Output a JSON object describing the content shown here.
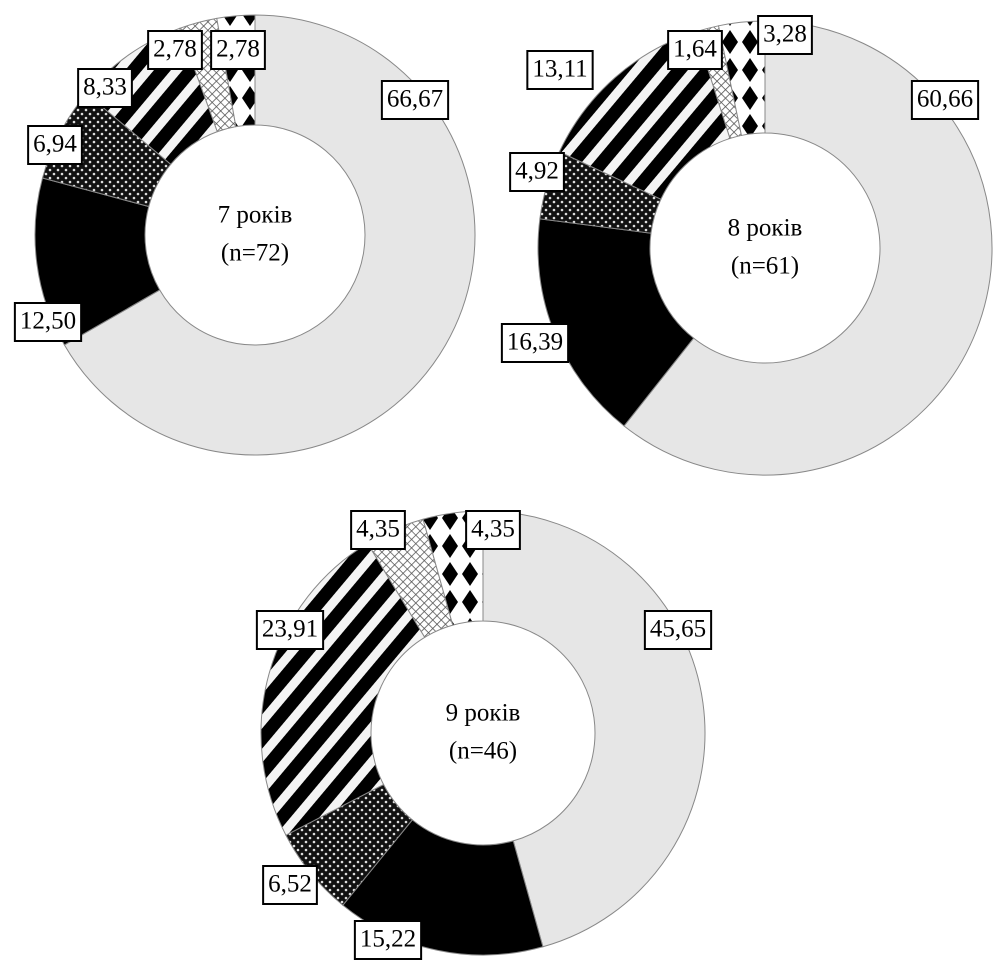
{
  "chart_data": [
    {
      "type": "donut",
      "center_text": [
        "7 років",
        "(n=72)"
      ],
      "values": [
        66.67,
        12.5,
        6.94,
        8.33,
        2.78,
        2.78
      ],
      "value_labels": [
        "66,67",
        "12,50",
        "6,94",
        "8,33",
        "2,78",
        "2,78"
      ],
      "patterns": [
        "light",
        "black",
        "dots",
        "stripes",
        "crosshatch",
        "diamonds"
      ]
    },
    {
      "type": "donut",
      "center_text": [
        "8 років",
        "(n=61)"
      ],
      "values": [
        60.66,
        16.39,
        4.92,
        13.11,
        1.64,
        3.28
      ],
      "value_labels": [
        "60,66",
        "16,39",
        "4,92",
        "13,11",
        "1,64",
        "3,28"
      ],
      "patterns": [
        "light",
        "black",
        "dots",
        "stripes",
        "crosshatch",
        "diamonds"
      ]
    },
    {
      "type": "donut",
      "center_text": [
        "9 років",
        "(n=46)"
      ],
      "values": [
        45.65,
        15.22,
        6.52,
        23.91,
        4.35,
        4.35
      ],
      "value_labels": [
        "45,65",
        "15,22",
        "6,52",
        "23,91",
        "4,35",
        "4,35"
      ],
      "patterns": [
        "light",
        "black",
        "dots",
        "stripes",
        "crosshatch",
        "diamonds"
      ]
    }
  ]
}
